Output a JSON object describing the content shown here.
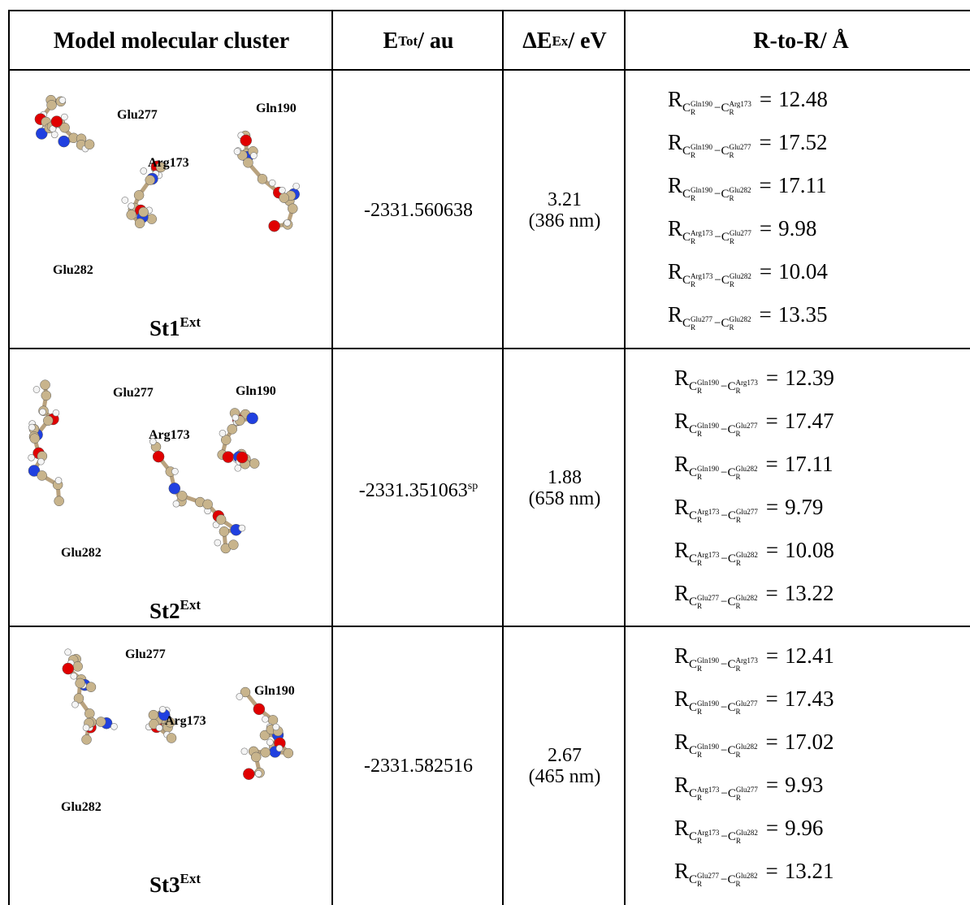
{
  "header": [
    {
      "text": "Model molecular cluster"
    },
    {
      "base": "E",
      "sup": "Tot",
      "rest": "/ au"
    },
    {
      "base": "ΔE",
      "sup": "Ex",
      "rest": "/ eV"
    },
    {
      "text": "R-to-R/ Å"
    }
  ],
  "symbols": {
    "distance": "R",
    "atom": "C",
    "atom_sub": "R",
    "minus": "−",
    "equals": "="
  },
  "rows": [
    {
      "name": {
        "base": "St1",
        "sup": "Ext"
      },
      "residue_labels": [
        "Glu277",
        "Gln190",
        "Arg173",
        "Glu282"
      ],
      "energy": -2331.560638,
      "excitation": 3.21,
      "wavelength": "(386 nm)",
      "distances": [
        {
          "from": "Gln190",
          "to": "Arg173",
          "value": 12.48
        },
        {
          "from": "Gln190",
          "to": "Glu277",
          "value": 17.52
        },
        {
          "from": "Gln190",
          "to": "Glu282",
          "value": 17.11
        },
        {
          "from": "Arg173",
          "to": "Glu277",
          "value": 9.98
        },
        {
          "from": "Arg173",
          "to": "Glu282",
          "value": 10.04
        },
        {
          "from": "Glu277",
          "to": "Glu282",
          "value": 13.35
        }
      ]
    },
    {
      "name": {
        "base": "St2",
        "sup": "Ext"
      },
      "residue_labels": [
        "Glu277",
        "Gln190",
        "Arg173",
        "Glu282"
      ],
      "energy": -2331.351063,
      "energy_note": "sp",
      "excitation": 1.88,
      "wavelength": "(658 nm)",
      "distances": [
        {
          "from": "Gln190",
          "to": "Arg173",
          "value": 12.39
        },
        {
          "from": "Gln190",
          "to": "Glu277",
          "value": 17.47
        },
        {
          "from": "Gln190",
          "to": "Glu282",
          "value": 17.11
        },
        {
          "from": "Arg173",
          "to": "Glu277",
          "value": 9.79
        },
        {
          "from": "Arg173",
          "to": "Glu282",
          "value": 10.08
        },
        {
          "from": "Glu277",
          "to": "Glu282",
          "value": 13.22
        }
      ]
    },
    {
      "name": {
        "base": "St3",
        "sup": "Ext"
      },
      "residue_labels": [
        "Glu277",
        "Gln190",
        "Arg173",
        "Glu282"
      ],
      "energy": -2331.582516,
      "excitation": 2.67,
      "wavelength": "(465 nm)",
      "distances": [
        {
          "from": "Gln190",
          "to": "Arg173",
          "value": 12.41
        },
        {
          "from": "Gln190",
          "to": "Glu277",
          "value": 17.43
        },
        {
          "from": "Gln190",
          "to": "Glu282",
          "value": 17.02
        },
        {
          "from": "Arg173",
          "to": "Glu277",
          "value": 9.93
        },
        {
          "from": "Arg173",
          "to": "Glu282",
          "value": 9.96
        },
        {
          "from": "Glu277",
          "to": "Glu282",
          "value": 13.21
        }
      ]
    }
  ]
}
